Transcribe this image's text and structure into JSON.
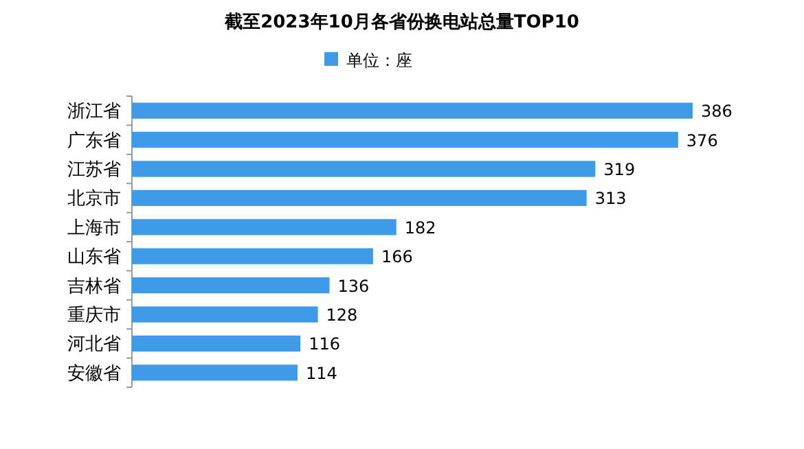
{
  "chart_data": {
    "type": "bar",
    "orientation": "horizontal",
    "title": "截至2023年10月各省份换电站总量TOP10",
    "categories": [
      "浙江省",
      "广东省",
      "江苏省",
      "北京市",
      "上海市",
      "山东省",
      "吉林省",
      "重庆市",
      "河北省",
      "安徽省"
    ],
    "series": [
      {
        "name": "单位：座",
        "color": "#3d9be9",
        "values": [
          386,
          376,
          319,
          313,
          182,
          166,
          136,
          128,
          116,
          114
        ]
      }
    ],
    "data_labels": true,
    "legend": "top"
  }
}
